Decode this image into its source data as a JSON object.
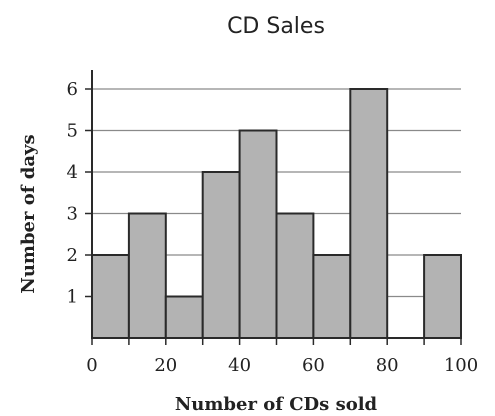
{
  "chart_data": {
    "type": "bar",
    "title": "CD Sales",
    "xlabel": "Number of CDs sold",
    "ylabel": "Number of days",
    "bin_edges": [
      0,
      10,
      20,
      30,
      40,
      50,
      60,
      70,
      80,
      90,
      100
    ],
    "values": [
      2,
      3,
      1,
      4,
      5,
      3,
      2,
      6,
      0,
      2
    ],
    "xlim": [
      0,
      100
    ],
    "ylim": [
      0,
      6
    ],
    "x_ticks": [
      "0",
      "20",
      "40",
      "60",
      "80",
      "100"
    ],
    "y_ticks": [
      "1",
      "2",
      "3",
      "4",
      "5",
      "6"
    ],
    "grid": "horizontal",
    "colors": {
      "bar_fill": "#b3b3b3",
      "bar_stroke": "#2a2a2a",
      "grid": "#8a8a8a",
      "axis": "#2a2a2a"
    }
  }
}
